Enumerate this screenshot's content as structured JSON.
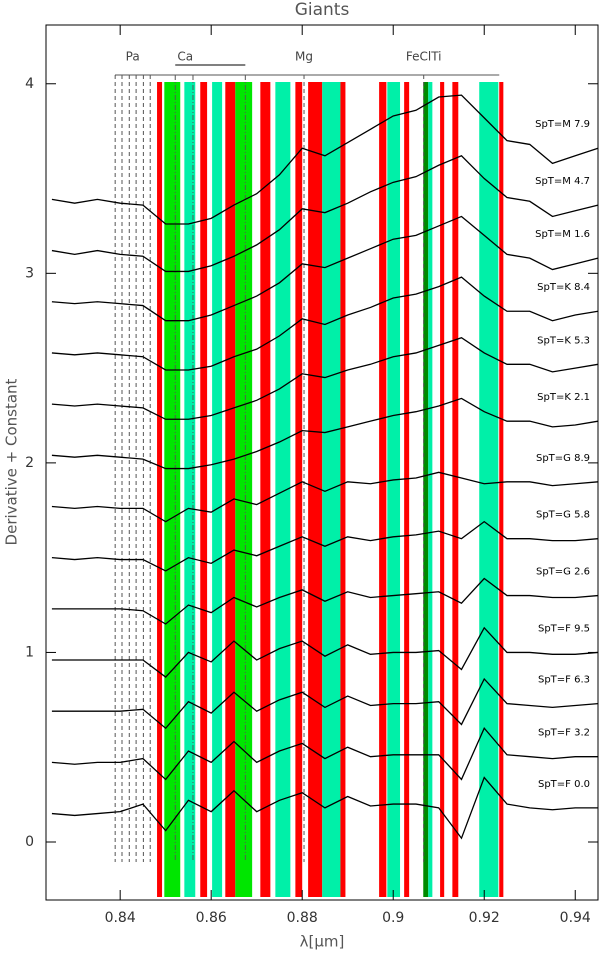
{
  "chart_data": {
    "type": "line",
    "title": "Giants",
    "xlabel": "λ[μm]",
    "ylabel": "Derivative + Constant",
    "x": [
      0.825,
      0.83,
      0.835,
      0.84,
      0.845,
      0.85,
      0.855,
      0.86,
      0.865,
      0.87,
      0.875,
      0.88,
      0.885,
      0.89,
      0.895,
      0.9,
      0.905,
      0.91,
      0.915,
      0.92,
      0.925,
      0.93,
      0.935,
      0.94,
      0.945
    ],
    "series": [
      {
        "name": "SpT=M 7.9",
        "color": "#000000",
        "values": [
          3.39,
          3.37,
          3.39,
          3.37,
          3.36,
          3.26,
          3.26,
          3.29,
          3.36,
          3.42,
          3.52,
          3.66,
          3.62,
          3.69,
          3.76,
          3.83,
          3.86,
          3.93,
          3.94,
          3.82,
          3.7,
          3.68,
          3.58,
          3.62,
          3.66
        ]
      },
      {
        "name": "SpT=M 4.7",
        "color": "#000000",
        "values": [
          3.12,
          3.1,
          3.12,
          3.1,
          3.09,
          3.01,
          3.01,
          3.04,
          3.09,
          3.15,
          3.23,
          3.34,
          3.32,
          3.37,
          3.43,
          3.48,
          3.51,
          3.57,
          3.62,
          3.5,
          3.4,
          3.38,
          3.3,
          3.33,
          3.36
        ]
      },
      {
        "name": "SpT=M 1.6",
        "color": "#000000",
        "values": [
          2.85,
          2.84,
          2.85,
          2.84,
          2.83,
          2.75,
          2.75,
          2.78,
          2.83,
          2.88,
          2.95,
          3.05,
          3.03,
          3.08,
          3.13,
          3.18,
          3.2,
          3.25,
          3.3,
          3.2,
          3.1,
          3.08,
          3.02,
          3.05,
          3.08
        ]
      },
      {
        "name": "SpT=K 8.4",
        "color": "#000000",
        "values": [
          2.58,
          2.57,
          2.58,
          2.57,
          2.56,
          2.49,
          2.49,
          2.51,
          2.56,
          2.6,
          2.67,
          2.76,
          2.73,
          2.78,
          2.82,
          2.87,
          2.89,
          2.93,
          2.98,
          2.88,
          2.8,
          2.8,
          2.75,
          2.78,
          2.8
        ]
      },
      {
        "name": "SpT=K 5.3",
        "color": "#000000",
        "values": [
          2.31,
          2.3,
          2.31,
          2.3,
          2.29,
          2.23,
          2.23,
          2.25,
          2.29,
          2.33,
          2.39,
          2.47,
          2.45,
          2.49,
          2.52,
          2.56,
          2.58,
          2.62,
          2.66,
          2.58,
          2.52,
          2.52,
          2.48,
          2.5,
          2.52
        ]
      },
      {
        "name": "SpT=K 2.1",
        "color": "#000000",
        "values": [
          2.04,
          2.03,
          2.04,
          2.03,
          2.02,
          1.97,
          1.97,
          1.99,
          2.02,
          2.06,
          2.11,
          2.17,
          2.16,
          2.19,
          2.22,
          2.25,
          2.27,
          2.3,
          2.34,
          2.27,
          2.22,
          2.22,
          2.19,
          2.2,
          2.22
        ]
      },
      {
        "name": "SpT=G 8.9",
        "color": "#000000",
        "values": [
          1.77,
          1.76,
          1.77,
          1.76,
          1.76,
          1.69,
          1.76,
          1.74,
          1.81,
          1.78,
          1.84,
          1.9,
          1.85,
          1.9,
          1.89,
          1.91,
          1.92,
          1.95,
          1.92,
          1.89,
          1.9,
          1.9,
          1.88,
          1.89,
          1.9
        ]
      },
      {
        "name": "SpT=G 5.8",
        "color": "#000000",
        "values": [
          1.5,
          1.49,
          1.5,
          1.49,
          1.49,
          1.43,
          1.5,
          1.47,
          1.54,
          1.51,
          1.56,
          1.61,
          1.56,
          1.61,
          1.59,
          1.61,
          1.62,
          1.64,
          1.6,
          1.69,
          1.6,
          1.6,
          1.59,
          1.59,
          1.6
        ]
      },
      {
        "name": "SpT=G 2.6",
        "color": "#000000",
        "values": [
          1.23,
          1.23,
          1.23,
          1.23,
          1.22,
          1.15,
          1.25,
          1.21,
          1.29,
          1.24,
          1.29,
          1.33,
          1.27,
          1.32,
          1.29,
          1.3,
          1.31,
          1.32,
          1.26,
          1.39,
          1.3,
          1.3,
          1.29,
          1.29,
          1.3
        ]
      },
      {
        "name": "SpT=F 9.5",
        "color": "#000000",
        "values": [
          0.96,
          0.96,
          0.96,
          0.96,
          0.96,
          0.87,
          1.0,
          0.95,
          1.06,
          0.96,
          1.02,
          1.06,
          0.98,
          1.04,
          0.99,
          1.0,
          1.0,
          1.01,
          0.91,
          1.13,
          1.0,
          1.0,
          0.99,
          0.99,
          1.0
        ]
      },
      {
        "name": "SpT=F 6.3",
        "color": "#000000",
        "values": [
          0.69,
          0.69,
          0.69,
          0.69,
          0.7,
          0.6,
          0.74,
          0.68,
          0.79,
          0.69,
          0.75,
          0.79,
          0.71,
          0.77,
          0.72,
          0.73,
          0.73,
          0.74,
          0.62,
          0.86,
          0.73,
          0.72,
          0.71,
          0.72,
          0.73
        ]
      },
      {
        "name": "SpT=F 3.2",
        "color": "#000000",
        "values": [
          0.42,
          0.41,
          0.42,
          0.42,
          0.44,
          0.33,
          0.48,
          0.42,
          0.53,
          0.42,
          0.48,
          0.52,
          0.44,
          0.5,
          0.45,
          0.46,
          0.46,
          0.46,
          0.33,
          0.6,
          0.46,
          0.45,
          0.44,
          0.45,
          0.45
        ]
      },
      {
        "name": "SpT=F 0.0",
        "color": "#000000",
        "values": [
          0.15,
          0.14,
          0.15,
          0.16,
          0.2,
          0.06,
          0.22,
          0.16,
          0.27,
          0.16,
          0.22,
          0.26,
          0.18,
          0.24,
          0.19,
          0.2,
          0.2,
          0.18,
          0.02,
          0.34,
          0.2,
          0.18,
          0.17,
          0.18,
          0.18
        ]
      }
    ],
    "bands": [
      {
        "x0": 0.8481,
        "x1": 0.8492,
        "color": "#ff0000"
      },
      {
        "x0": 0.8497,
        "x1": 0.8532,
        "color": "#00e600"
      },
      {
        "x0": 0.8541,
        "x1": 0.8565,
        "color": "#00f0a8"
      },
      {
        "x0": 0.8576,
        "x1": 0.8591,
        "color": "#ff0000"
      },
      {
        "x0": 0.8602,
        "x1": 0.8624,
        "color": "#00f0a8"
      },
      {
        "x0": 0.8631,
        "x1": 0.8653,
        "color": "#ff0000"
      },
      {
        "x0": 0.8653,
        "x1": 0.869,
        "color": "#00e600"
      },
      {
        "x0": 0.8708,
        "x1": 0.873,
        "color": "#ff0000"
      },
      {
        "x0": 0.8741,
        "x1": 0.8774,
        "color": "#00f0a8"
      },
      {
        "x0": 0.8785,
        "x1": 0.88,
        "color": "#ff0000"
      },
      {
        "x0": 0.8813,
        "x1": 0.8844,
        "color": "#ff0000"
      },
      {
        "x0": 0.8844,
        "x1": 0.8884,
        "color": "#00f0a8"
      },
      {
        "x0": 0.8884,
        "x1": 0.8895,
        "color": "#ff0000"
      },
      {
        "x0": 0.8969,
        "x1": 0.8985,
        "color": "#ff0000"
      },
      {
        "x0": 0.8987,
        "x1": 0.9015,
        "color": "#00f0a8"
      },
      {
        "x0": 0.9024,
        "x1": 0.9035,
        "color": "#ff0000"
      },
      {
        "x0": 0.9066,
        "x1": 0.9077,
        "color": "#008a00"
      },
      {
        "x0": 0.9077,
        "x1": 0.9086,
        "color": "#00f0a8"
      },
      {
        "x0": 0.9103,
        "x1": 0.9112,
        "color": "#ff0000"
      },
      {
        "x0": 0.913,
        "x1": 0.9143,
        "color": "#ff0000"
      },
      {
        "x0": 0.9189,
        "x1": 0.9231,
        "color": "#00f0a8"
      },
      {
        "x0": 0.9233,
        "x1": 0.9242,
        "color": "#ff0000"
      }
    ],
    "line_markers": [
      {
        "label": "Pa",
        "x": [
          0.8389,
          0.8404,
          0.842,
          0.8435,
          0.8451,
          0.8466
        ]
      },
      {
        "label": "Ca",
        "x": [
          0.8521,
          0.856,
          0.8675
        ]
      },
      {
        "label": "Mg",
        "x": [
          0.8804
        ]
      },
      {
        "label": "FeClTi",
        "x": [
          0.9067
        ]
      }
    ],
    "xlim": [
      0.8237,
      0.945
    ],
    "ylim": [
      -0.306,
      4.31
    ],
    "xticks": [
      0.84,
      0.86,
      0.88,
      0.9,
      0.92,
      0.94
    ],
    "yticks": [
      0,
      1,
      2,
      3,
      4
    ]
  }
}
